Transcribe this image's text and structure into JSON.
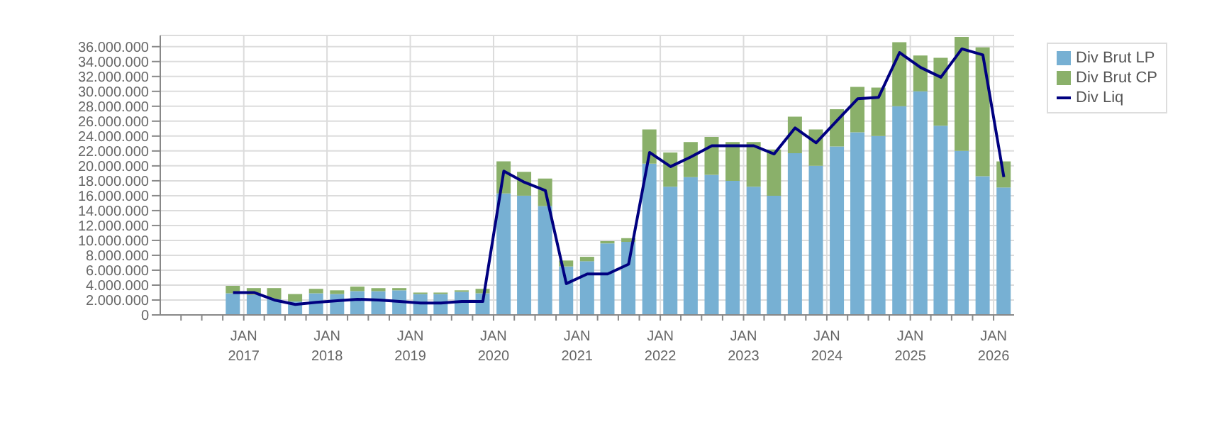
{
  "chart_data": {
    "type": "bar",
    "stacked": true,
    "x": [
      "2016-11-15",
      "2017-02-15",
      "2017-05-15",
      "2017-08-15",
      "2017-11-15",
      "2018-02-15",
      "2018-05-15",
      "2018-08-15",
      "2018-11-15",
      "2019-02-15",
      "2019-05-15",
      "2019-08-15",
      "2019-11-15",
      "2020-02-15",
      "2020-05-15",
      "2020-08-15",
      "2020-11-15",
      "2021-02-15",
      "2021-05-15",
      "2021-08-15",
      "2021-11-15",
      "2022-02-15",
      "2022-05-15",
      "2022-08-15",
      "2022-11-15",
      "2023-02-15",
      "2023-05-15",
      "2023-08-15",
      "2023-11-15",
      "2024-02-15",
      "2024-05-15",
      "2024-08-15",
      "2024-11-15",
      "2025-02-15",
      "2025-05-15",
      "2025-08-15",
      "2025-11-15",
      "2026-02-15"
    ],
    "series": [
      {
        "name": "Div Brut LP",
        "color": "#77b0d3",
        "values": [
          2900000,
          2700000,
          2100000,
          1800000,
          2900000,
          2800000,
          3200000,
          3200000,
          3300000,
          2800000,
          2800000,
          3100000,
          2900000,
          16300000,
          16000000,
          14600000,
          6500000,
          7200000,
          9600000,
          9800000,
          20300000,
          17200000,
          18500000,
          18800000,
          18000000,
          17200000,
          16000000,
          21700000,
          20000000,
          22600000,
          24500000,
          24000000,
          28000000,
          30000000,
          25400000,
          22000000,
          18600000,
          17100000
        ]
      },
      {
        "name": "Div Brut CP",
        "type": "bar",
        "color": "#8ab06a",
        "values": [
          1000000,
          900000,
          1500000,
          1000000,
          600000,
          500000,
          600000,
          400000,
          300000,
          200000,
          200000,
          200000,
          600000,
          4300000,
          3200000,
          3700000,
          800000,
          600000,
          300000,
          500000,
          4600000,
          4600000,
          4700000,
          5100000,
          5200000,
          6000000,
          6200000,
          4900000,
          4900000,
          5000000,
          6100000,
          6500000,
          8600000,
          4800000,
          9100000,
          15300000,
          17300000,
          3500000
        ]
      },
      {
        "name": "Div Liq",
        "type": "line",
        "color": "#000080",
        "values": [
          3000000,
          3000000,
          2000000,
          1400000,
          1700000,
          1900000,
          2100000,
          2000000,
          1800000,
          1600000,
          1600000,
          1800000,
          1800000,
          19300000,
          17800000,
          16700000,
          4200000,
          5500000,
          5500000,
          6800000,
          21800000,
          19900000,
          21200000,
          22700000,
          22700000,
          22700000,
          21600000,
          25100000,
          23100000,
          26100000,
          29000000,
          29200000,
          35200000,
          33200000,
          31900000,
          35700000,
          34900000,
          18500000
        ]
      }
    ],
    "xlim": [
      "2016-01-01",
      "2026-04-01"
    ],
    "xticks": [
      {
        "value": "2016-04-01",
        "label": null
      },
      {
        "value": "2016-07-01",
        "label": null
      },
      {
        "value": "2016-10-01",
        "label": null
      },
      {
        "value": "2017-01-01",
        "label": "JAN 2017"
      },
      {
        "value": "2017-04-01",
        "label": null
      },
      {
        "value": "2017-07-01",
        "label": null
      },
      {
        "value": "2017-10-01",
        "label": null
      },
      {
        "value": "2018-01-01",
        "label": "JAN 2018"
      },
      {
        "value": "2018-04-01",
        "label": null
      },
      {
        "value": "2018-07-01",
        "label": null
      },
      {
        "value": "2018-10-01",
        "label": null
      },
      {
        "value": "2019-01-01",
        "label": "JAN 2019"
      },
      {
        "value": "2019-04-01",
        "label": null
      },
      {
        "value": "2019-07-01",
        "label": null
      },
      {
        "value": "2019-10-01",
        "label": null
      },
      {
        "value": "2020-01-01",
        "label": "JAN 2020"
      },
      {
        "value": "2020-04-01",
        "label": null
      },
      {
        "value": "2020-07-01",
        "label": null
      },
      {
        "value": "2020-10-01",
        "label": null
      },
      {
        "value": "2021-01-01",
        "label": "JAN 2021"
      },
      {
        "value": "2021-04-01",
        "label": null
      },
      {
        "value": "2021-07-01",
        "label": null
      },
      {
        "value": "2021-10-01",
        "label": null
      },
      {
        "value": "2022-01-01",
        "label": "JAN 2022"
      },
      {
        "value": "2022-04-01",
        "label": null
      },
      {
        "value": "2022-07-01",
        "label": null
      },
      {
        "value": "2022-10-01",
        "label": null
      },
      {
        "value": "2023-01-01",
        "label": "JAN 2023"
      },
      {
        "value": "2023-04-01",
        "label": null
      },
      {
        "value": "2023-07-01",
        "label": null
      },
      {
        "value": "2023-10-01",
        "label": null
      },
      {
        "value": "2024-01-01",
        "label": "JAN 2024"
      },
      {
        "value": "2024-04-01",
        "label": null
      },
      {
        "value": "2024-07-01",
        "label": null
      },
      {
        "value": "2024-10-01",
        "label": null
      },
      {
        "value": "2025-01-01",
        "label": "JAN 2025"
      },
      {
        "value": "2025-04-01",
        "label": null
      },
      {
        "value": "2025-07-01",
        "label": null
      },
      {
        "value": "2025-10-01",
        "label": null
      },
      {
        "value": "2026-01-01",
        "label": "JAN 2026"
      }
    ],
    "ylim": [
      0,
      37500000
    ],
    "yticks": [
      {
        "value": 0,
        "label": "0"
      },
      {
        "value": 2000000,
        "label": "2.000.000"
      },
      {
        "value": 4000000,
        "label": "4.000.000"
      },
      {
        "value": 6000000,
        "label": "6.000.000"
      },
      {
        "value": 8000000,
        "label": "8.000.000"
      },
      {
        "value": 10000000,
        "label": "10.000.000"
      },
      {
        "value": 12000000,
        "label": "12.000.000"
      },
      {
        "value": 14000000,
        "label": "14.000.000"
      },
      {
        "value": 16000000,
        "label": "16.000.000"
      },
      {
        "value": 18000000,
        "label": "18.000.000"
      },
      {
        "value": 20000000,
        "label": "20.000.000"
      },
      {
        "value": 22000000,
        "label": "22.000.000"
      },
      {
        "value": 24000000,
        "label": "24.000.000"
      },
      {
        "value": 26000000,
        "label": "26.000.000"
      },
      {
        "value": 28000000,
        "label": "28.000.000"
      },
      {
        "value": 30000000,
        "label": "30.000.000"
      },
      {
        "value": 32000000,
        "label": "32.000.000"
      },
      {
        "value": 34000000,
        "label": "34.000.000"
      },
      {
        "value": 36000000,
        "label": "36.000.000"
      }
    ],
    "grid": true,
    "legend": "top right",
    "marker": "none",
    "line_style": "solid"
  }
}
